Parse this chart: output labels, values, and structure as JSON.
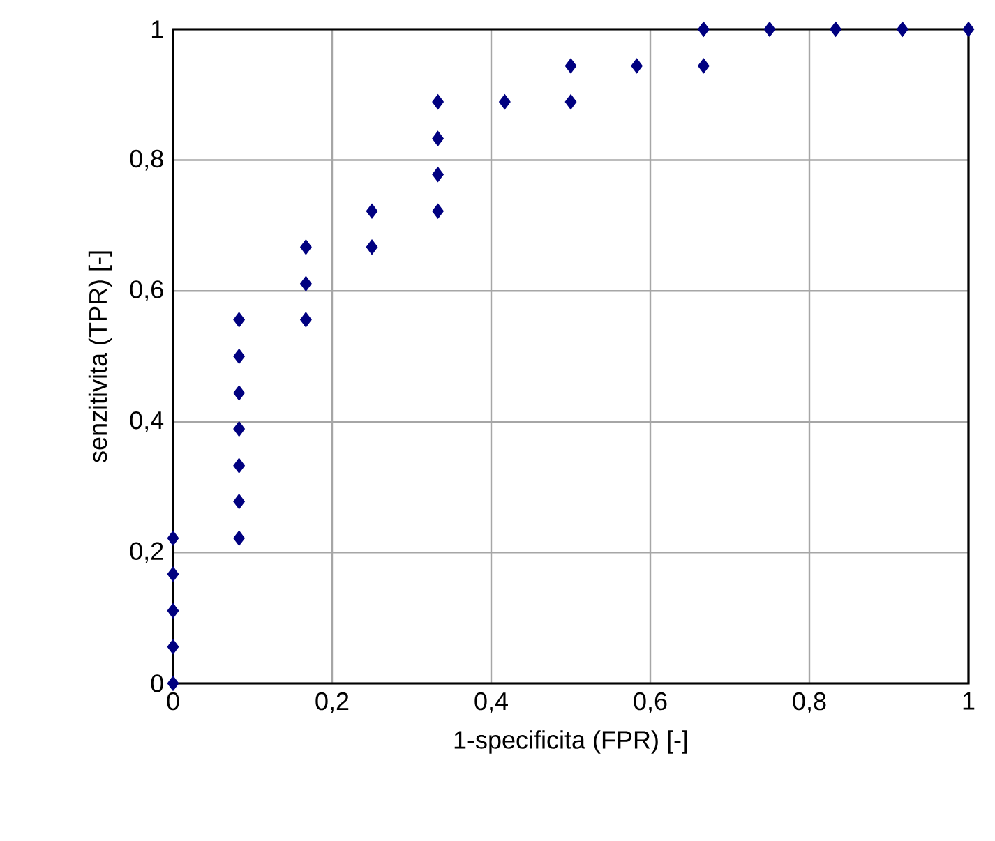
{
  "chart_data": {
    "type": "scatter",
    "xlabel": "1-specificita (FPR) [-]",
    "ylabel": "senzitivita (TPR) [-]",
    "x": [
      0,
      0,
      0,
      0,
      0,
      0.083,
      0.083,
      0.083,
      0.083,
      0.083,
      0.083,
      0.083,
      0.167,
      0.167,
      0.167,
      0.25,
      0.25,
      0.333,
      0.333,
      0.333,
      0.333,
      0.417,
      0.5,
      0.5,
      0.583,
      0.667,
      0.667,
      0.75,
      0.833,
      0.917,
      1
    ],
    "values": [
      0,
      0.056,
      0.111,
      0.167,
      0.222,
      0.222,
      0.278,
      0.333,
      0.389,
      0.444,
      0.5,
      0.556,
      0.556,
      0.611,
      0.667,
      0.667,
      0.722,
      0.722,
      0.778,
      0.833,
      0.889,
      0.889,
      0.889,
      0.944,
      0.944,
      0.944,
      1,
      1,
      1,
      1,
      1
    ],
    "color": "#000080",
    "marker": "diamond",
    "grid": true,
    "xlim": [
      0,
      1
    ],
    "ylim": [
      0,
      1
    ],
    "xticks": [
      0,
      {
        "value": 0.2,
        "label": "0,2"
      },
      {
        "value": 0.4,
        "label": "0,4"
      },
      {
        "value": 0.6,
        "label": "0,6"
      },
      {
        "value": 0.8,
        "label": "0,8"
      },
      1
    ],
    "yticks": [
      0,
      {
        "value": 0.2,
        "label": "0,2"
      },
      {
        "value": 0.4,
        "label": "0,4"
      },
      {
        "value": 0.6,
        "label": "0,6"
      },
      {
        "value": 0.8,
        "label": "0,8"
      },
      1
    ]
  }
}
